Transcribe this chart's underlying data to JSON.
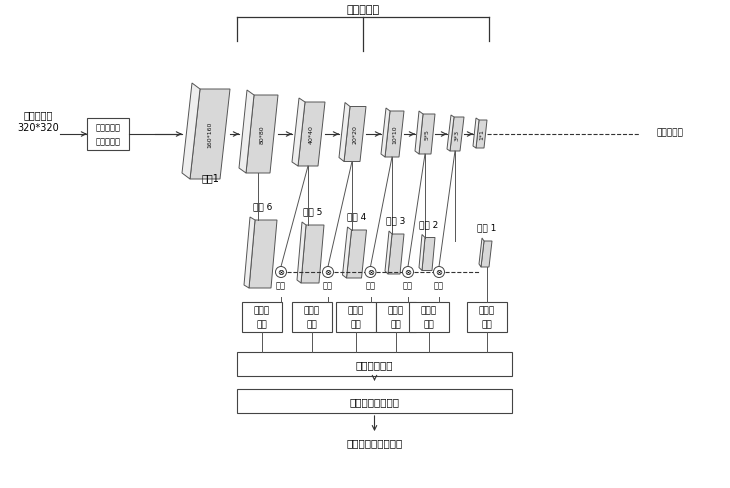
{
  "title": "倒残差结构",
  "input_label1": "输入原图像",
  "input_label2": "320*320",
  "gan_label1": "协同调制生",
  "gan_label2": "成对抗网络",
  "conv1_label": "卷积1",
  "bilinear_label": "双线性插値",
  "feature_layers": [
    "160*160",
    "80*80",
    "40*40",
    "20*20",
    "10*10",
    "5*5",
    "3*3",
    "1*1"
  ],
  "feature_labels": [
    "特征 6",
    "特征 5",
    "特征 4",
    "特征 3",
    "特征 2",
    "特征 1"
  ],
  "fusion_label": "融合",
  "classify_label1": "分类及",
  "classify_label2": "定位",
  "nms_label": "非极大値抑制",
  "occlusion_label": "部分遥挡处理模块",
  "output_label": "输出分类及定位结果",
  "bg_color": "#ffffff",
  "layer_color": "#d8d8d8",
  "edge_color": "#555555",
  "line_color": "#333333",
  "box_edge": "#444444"
}
